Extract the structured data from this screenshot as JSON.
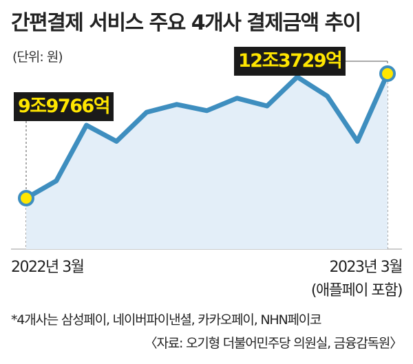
{
  "header": {
    "title": "간편결제 서비스 주요 4개사 결제금액 추이",
    "unit": "(단위: 원)"
  },
  "annotations": {
    "start_value": "9조9766억",
    "end_value": "12조3729억"
  },
  "x_labels": {
    "start": "2022년 3월",
    "end": "2023년 3월",
    "end_note": "(애플페이 포함)"
  },
  "footer": {
    "footnote": "*4개사는 삼성페이, 네이버파이낸셜, 카카오페이, NHN페이코",
    "source": "〈자료: 오기형 더불어민주당 의원실, 금융감독원〉"
  },
  "colors": {
    "line": "#3e8ebf",
    "area": "#e3eef8",
    "marker": "#ffe600",
    "badge_bg": "#1a1a1a",
    "badge_text": "#ffe600"
  },
  "chart_data": {
    "type": "line",
    "x": [
      "2022-03",
      "2022-04",
      "2022-05",
      "2022-06",
      "2022-07",
      "2022-08",
      "2022-09",
      "2022-10",
      "2022-11",
      "2022-12",
      "2023-01",
      "2023-02",
      "2023-03"
    ],
    "values": [
      9.9766,
      10.31,
      11.38,
      11.07,
      11.63,
      11.78,
      11.66,
      11.9,
      11.75,
      12.31,
      11.94,
      11.07,
      12.3729
    ],
    "ylim": [
      8.0,
      13.0
    ],
    "highlighted_points": [
      0,
      12
    ],
    "area_fill": true,
    "grid": false
  }
}
